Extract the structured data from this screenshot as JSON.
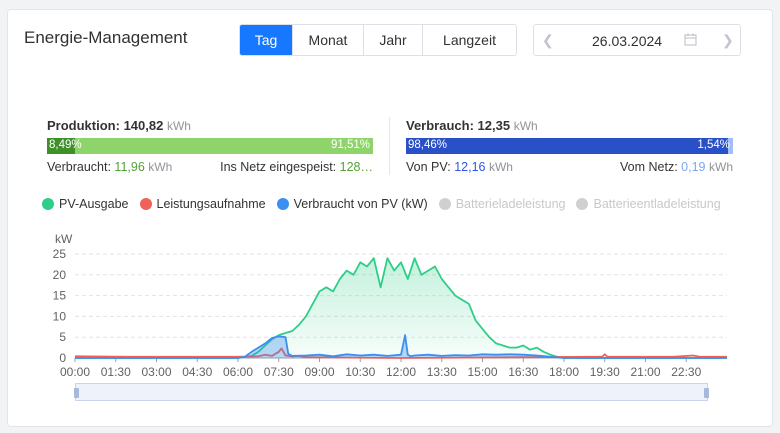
{
  "title": "Energie-Management",
  "tabs": [
    {
      "label": "Tag",
      "active": true
    },
    {
      "label": "Monat",
      "active": false
    },
    {
      "label": "Jahr",
      "active": false
    },
    {
      "label": "Langzeit",
      "active": false
    }
  ],
  "date": "26.03.2024",
  "production": {
    "label": "Produktion:",
    "value": "140,82",
    "unit": "kWh",
    "bar_left": "8,49%",
    "bar_right": "91,51%",
    "self_share": 0.0849,
    "consumed_label": "Verbraucht:",
    "consumed_value": "11,96",
    "consumed_unit": "kWh",
    "grid_label": "Ins Netz eingespeist:",
    "grid_value": "128…",
    "colors": {
      "self": "#3f8f2a",
      "grid": "#8fd46b"
    }
  },
  "consumption": {
    "label": "Verbrauch:",
    "value": "12,35",
    "unit": "kWh",
    "bar_left": "98,46%",
    "bar_right": "1,54%",
    "pv_share": 0.9846,
    "pv_label": "Von PV:",
    "pv_value": "12,16",
    "pv_unit": "kWh",
    "grid_label": "Vom Netz:",
    "grid_value": "0,19",
    "grid_unit": "kWh",
    "colors": {
      "pv": "#2a50c8",
      "grid": "#a3bdf5"
    }
  },
  "legend": [
    {
      "label": "PV-Ausgabe",
      "color": "#2fce88",
      "enabled": true
    },
    {
      "label": "Leistungsaufnahme",
      "color": "#f2605a",
      "enabled": true
    },
    {
      "label": "Verbraucht von PV (kW)",
      "color": "#3b8ff0",
      "enabled": true
    },
    {
      "label": "Batterieladeleistung",
      "color": "#d0d0d0",
      "enabled": false
    },
    {
      "label": "Batterieentladeleistung",
      "color": "#d0d0d0",
      "enabled": false
    }
  ],
  "chart_data": {
    "type": "area",
    "ylabel": "kW",
    "ylim": [
      0,
      25
    ],
    "yticks": [
      0,
      5,
      10,
      15,
      20,
      25
    ],
    "xticks": [
      "00:00",
      "01:30",
      "03:00",
      "04:30",
      "06:00",
      "07:30",
      "09:00",
      "10:30",
      "12:00",
      "13:30",
      "15:00",
      "16:30",
      "18:00",
      "19:30",
      "21:00",
      "22:30"
    ],
    "grid": true,
    "series": [
      {
        "name": "PV-Ausgabe",
        "color": "#2fce88",
        "x": [
          0,
          6,
          6.5,
          6.75,
          7,
          7.25,
          7.5,
          7.75,
          8,
          8.25,
          8.5,
          8.75,
          9,
          9.25,
          9.5,
          9.75,
          10,
          10.25,
          10.5,
          10.75,
          11,
          11.25,
          11.5,
          11.75,
          12,
          12.25,
          12.5,
          12.75,
          13,
          13.25,
          13.5,
          13.75,
          14,
          14.25,
          14.5,
          14.75,
          15,
          15.25,
          15.5,
          15.75,
          16,
          16.25,
          16.5,
          16.75,
          17,
          17.25,
          17.5,
          17.75,
          18,
          24
        ],
        "y": [
          0,
          0,
          0.5,
          1.5,
          3,
          4.5,
          5.5,
          6,
          6.5,
          8,
          10,
          13,
          16,
          17,
          16,
          19,
          21,
          20,
          23,
          22,
          24,
          17,
          24,
          21,
          23,
          19,
          24,
          20,
          21,
          22,
          19,
          17,
          15,
          14,
          13,
          9,
          7,
          5,
          3.5,
          3,
          2.5,
          2.5,
          3,
          2,
          2.5,
          1.5,
          0.8,
          0.3,
          0,
          0
        ]
      },
      {
        "name": "Leistungsaufnahme",
        "color": "#f2605a",
        "x": [
          0,
          2,
          4,
          6,
          6.75,
          7,
          7.25,
          7.5,
          7.6,
          7.75,
          8,
          8.25,
          8.5,
          12,
          19,
          19.4,
          19.5,
          19.6,
          20,
          22,
          22.75,
          23,
          24
        ],
        "y": [
          0.4,
          0.3,
          0.3,
          0.3,
          0.4,
          0.8,
          0.5,
          1.5,
          2.3,
          0.6,
          0.4,
          0.5,
          0.2,
          0,
          0.3,
          0.3,
          0.9,
          0.3,
          0.3,
          0.3,
          0.6,
          0.3,
          0.3
        ]
      },
      {
        "name": "Verbraucht von PV (kW)",
        "color": "#3b8ff0",
        "x": [
          0,
          6,
          6.25,
          6.5,
          6.75,
          7,
          7.25,
          7.5,
          7.75,
          7.85,
          8,
          8.5,
          9,
          9.5,
          10,
          10.5,
          11,
          11.5,
          12,
          12.15,
          12.25,
          12.35,
          12.5,
          13,
          13.5,
          14,
          14.5,
          15,
          15.5,
          16,
          16.5,
          17,
          17.5,
          18,
          24
        ],
        "y": [
          0,
          0,
          0.3,
          1.5,
          2.5,
          3.5,
          4.8,
          5.2,
          5,
          1,
          0.5,
          0.6,
          0.8,
          0.4,
          0.9,
          0.6,
          0.8,
          0.5,
          0.8,
          5.5,
          0.8,
          0.4,
          0.6,
          0.8,
          0.5,
          0.7,
          0.6,
          0.9,
          0.8,
          0.9,
          0.8,
          0.6,
          0.3,
          0,
          0
        ]
      }
    ]
  }
}
